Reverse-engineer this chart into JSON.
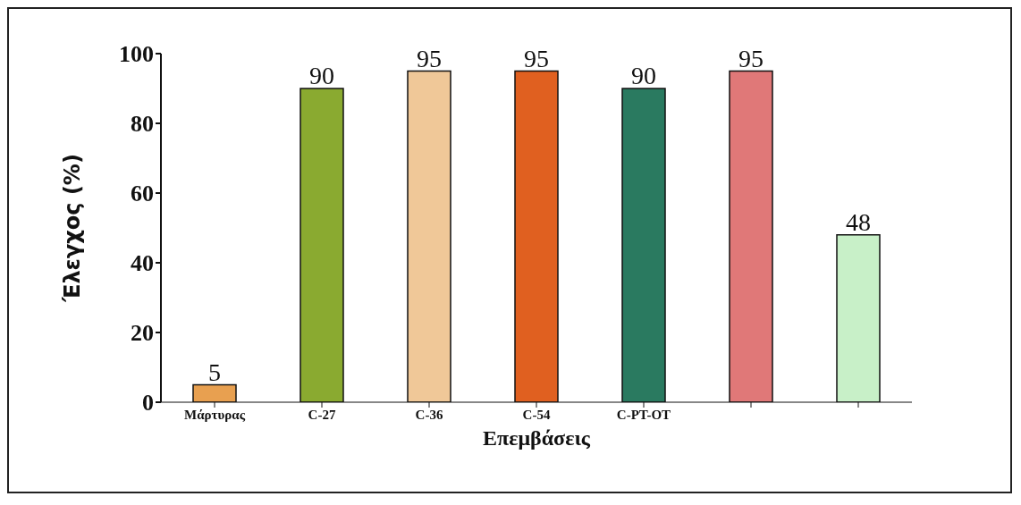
{
  "chart_data": {
    "type": "bar",
    "xlabel": "Επεμβάσεις",
    "ylabel": "Έλεγχος (%)",
    "categories": [
      "Μάρτυρας",
      "C-27",
      "C-36",
      "C-54",
      "C-PT-OT",
      null,
      null
    ],
    "values": [
      5,
      90,
      95,
      95,
      90,
      95,
      48
    ],
    "colors": [
      "#e8a050",
      "#8aaa30",
      "#f0c898",
      "#e06020",
      "#2a7a60",
      "#e07878",
      "#c8f0c8"
    ],
    "ylim": [
      0,
      100
    ],
    "yticks": [
      0,
      20,
      40,
      60,
      80,
      100
    ],
    "data_labels": true,
    "grid": false,
    "legend": false
  }
}
